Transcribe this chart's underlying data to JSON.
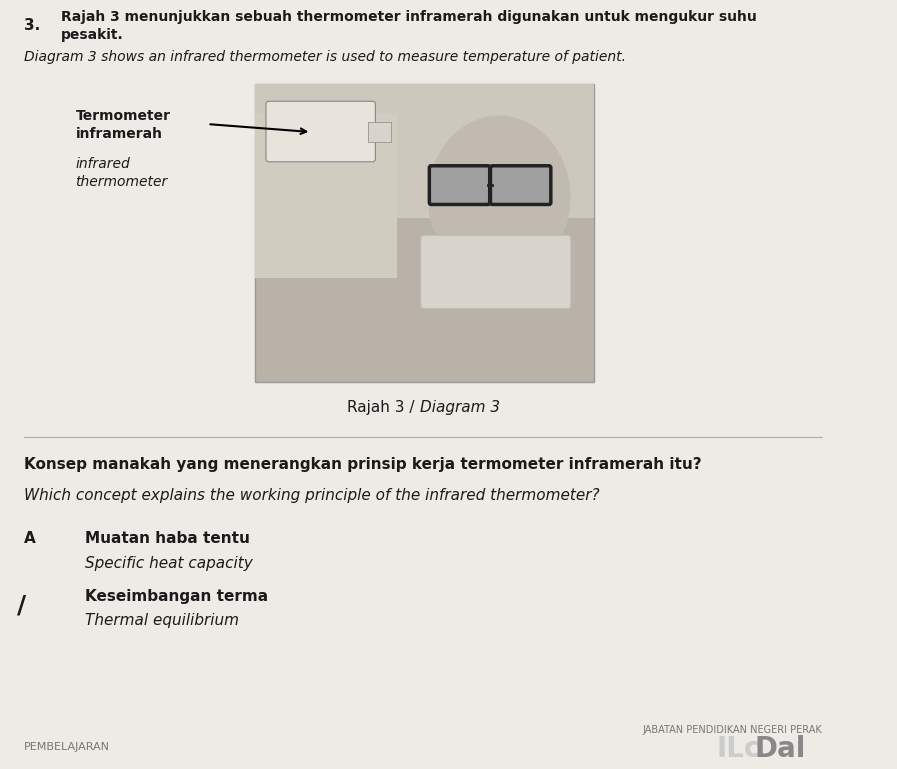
{
  "background_color": "#eeebe6",
  "question_number": "3.",
  "title_malay": "Rajah 3 menunjukkan sebuah thermometer inframerah digunakan untuk mengukur suhu pesakit.",
  "title_english": "Diagram 3 shows an infrared thermometer is used to measure temperature of patient.",
  "label_malay_line1": "Termometer",
  "label_malay_line2": "inframerah",
  "label_english_line1": "infrared",
  "label_english_line2": "thermometer",
  "diagram_caption_normal": "Rajah 3 / ",
  "diagram_caption_italic": "Diagram 3",
  "question_malay": "Konsep manakah yang menerangkan prinsip kerja termometer inframerah itu?",
  "question_english": "Which concept explains the working principle of the infrared thermometer?",
  "option_A_label": "A",
  "option_A_malay": "Muatan haba tentu",
  "option_A_english": "Specific heat capacity",
  "option_B_malay": "Keseimbangan terma",
  "option_B_english": "Thermal equilibrium",
  "footer_left": "PEMBELAJARAN",
  "footer_right": "JABATAN PENDIDIKAN NEGERI PERAK",
  "text_color": "#1a1a1a"
}
